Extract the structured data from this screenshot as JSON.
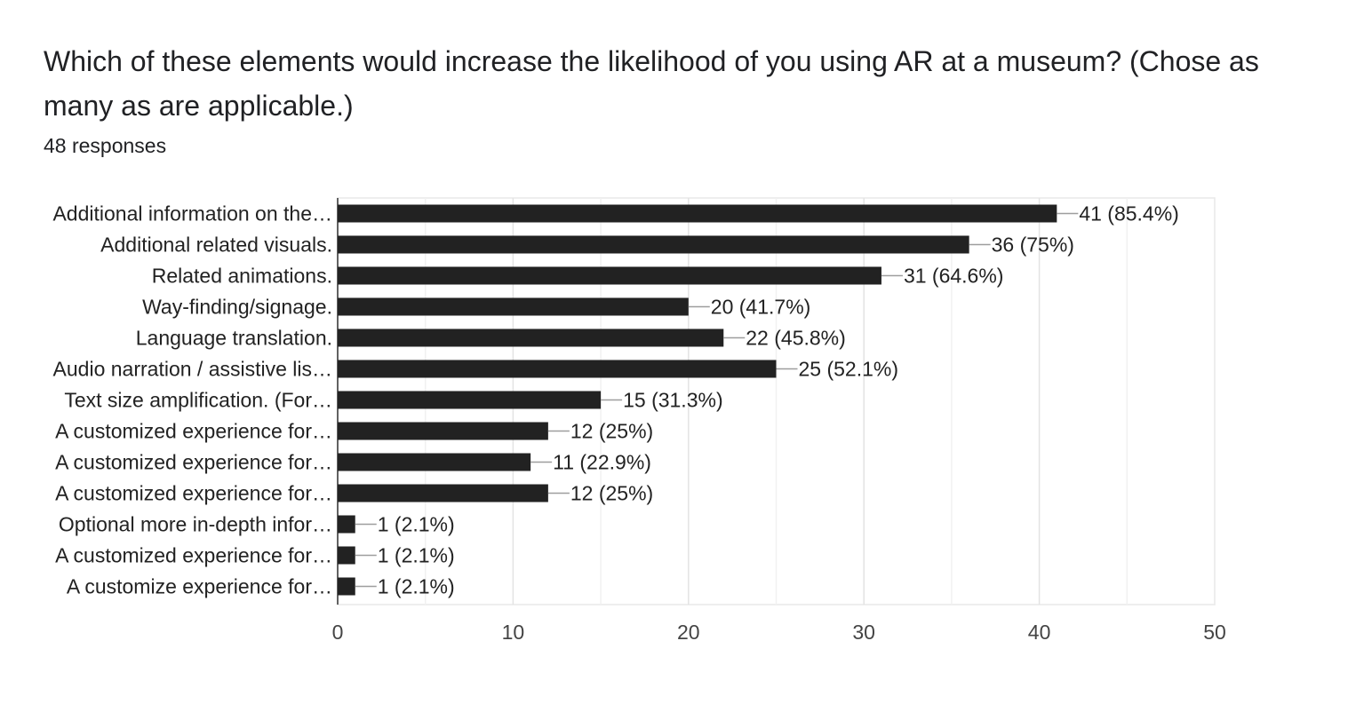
{
  "question": {
    "title": "Which of these elements would increase the likelihood of you using AR at a museum? (Chose as many as are applicable.)",
    "responses": "48 responses"
  },
  "colors": {
    "bar": "#222222",
    "grid": "#e8e8e8",
    "axis": "#333333",
    "leader": "#9e9e9e"
  },
  "chart_data": {
    "type": "bar",
    "orientation": "horizontal",
    "categories": [
      "Additional information on the…",
      "Additional related visuals.",
      "Related animations.",
      "Way-finding/signage.",
      "Language translation.",
      "Audio narration / assistive lis…",
      "Text size amplification. (For…",
      "A customized experience for…",
      "A customized experience for…",
      "A customized experience for…",
      "Optional more in-depth infor…",
      "A customized experience for…",
      "A customize experience for…"
    ],
    "values": [
      41,
      36,
      31,
      20,
      22,
      25,
      15,
      12,
      11,
      12,
      1,
      1,
      1
    ],
    "value_labels": [
      "41 (85.4%)",
      "36 (75%)",
      "31 (64.6%)",
      "20 (41.7%)",
      "22 (45.8%)",
      "25 (52.1%)",
      "15 (31.3%)",
      "12 (25%)",
      "11 (22.9%)",
      "12 (25%)",
      "1 (2.1%)",
      "1 (2.1%)",
      "1 (2.1%)"
    ],
    "xlim": [
      0,
      50
    ],
    "xticks": [
      0,
      10,
      20,
      30,
      40,
      50
    ],
    "grid": true,
    "legend": "none",
    "title": "",
    "xlabel": "",
    "ylabel": ""
  }
}
